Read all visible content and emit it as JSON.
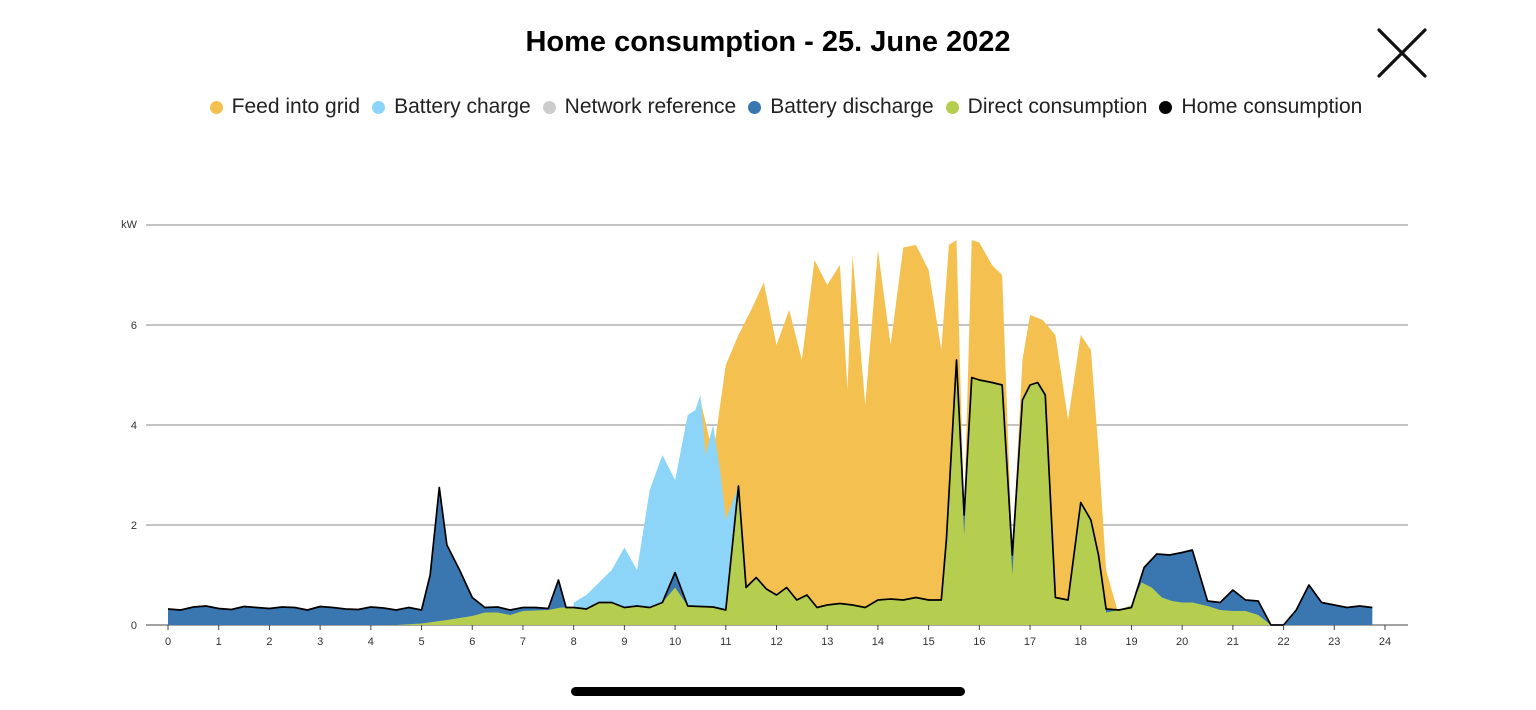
{
  "header": {
    "title": "Home consumption - 25. June 2022",
    "close_icon": "close-icon"
  },
  "colors": {
    "feed": "#F4C04F",
    "charge": "#8DD5F8",
    "network": "#CCCCCC",
    "discharge": "#3A77B1",
    "direct": "#B6CE4F",
    "home": "#000000"
  },
  "legend": [
    {
      "label": "Feed into grid",
      "color": "#F4C04F"
    },
    {
      "label": "Battery charge",
      "color": "#8DD5F8"
    },
    {
      "label": "Network reference",
      "color": "#CCCCCC"
    },
    {
      "label": "Battery discharge",
      "color": "#3A77B1"
    },
    {
      "label": "Direct consumption",
      "color": "#B6CE4F"
    },
    {
      "label": "Home consumption",
      "color": "#000000"
    }
  ],
  "chart_data": {
    "type": "area",
    "ylabel": "kW",
    "xlim": [
      0,
      24
    ],
    "ylim": [
      0,
      8
    ],
    "xticks": [
      "0",
      "1",
      "2",
      "3",
      "4",
      "5",
      "6",
      "7",
      "8",
      "9",
      "10",
      "11",
      "12",
      "13",
      "14",
      "15",
      "16",
      "17",
      "18",
      "19",
      "20",
      "21",
      "22",
      "23",
      "24"
    ],
    "yticks": [
      "0",
      "2",
      "4",
      "6"
    ],
    "grid": true,
    "legend_position": "top",
    "series": [
      {
        "name": "Home consumption",
        "x": [
          0,
          0.25,
          0.5,
          0.75,
          1,
          1.25,
          1.5,
          1.75,
          2,
          2.25,
          2.5,
          2.75,
          3,
          3.25,
          3.5,
          3.75,
          4,
          4.25,
          4.5,
          4.75,
          5,
          5.17,
          5.35,
          5.5,
          5.75,
          6,
          6.25,
          6.5,
          6.75,
          7,
          7.25,
          7.5,
          7.7,
          7.85,
          8,
          8.25,
          8.5,
          8.75,
          9,
          9.25,
          9.5,
          9.75,
          10,
          10.25,
          10.5,
          10.75,
          11,
          11.25,
          11.4,
          11.6,
          11.8,
          12,
          12.2,
          12.4,
          12.6,
          12.8,
          13,
          13.25,
          13.5,
          13.75,
          14,
          14.25,
          14.5,
          14.75,
          15,
          15.25,
          15.35,
          15.55,
          15.7,
          15.85,
          16,
          16.25,
          16.45,
          16.65,
          16.85,
          17,
          17.15,
          17.3,
          17.5,
          17.75,
          18,
          18.2,
          18.35,
          18.5,
          18.75,
          19,
          19.25,
          19.5,
          19.75,
          20,
          20.2,
          20.5,
          20.75,
          21,
          21.25,
          21.5,
          21.75,
          22,
          22.25,
          22.5,
          22.75,
          23,
          23.25,
          23.5,
          23.75
        ],
        "values": [
          0.32,
          0.3,
          0.36,
          0.38,
          0.33,
          0.31,
          0.37,
          0.35,
          0.33,
          0.36,
          0.35,
          0.3,
          0.37,
          0.35,
          0.32,
          0.31,
          0.36,
          0.34,
          0.3,
          0.35,
          0.3,
          1.0,
          2.75,
          1.6,
          1.1,
          0.55,
          0.35,
          0.36,
          0.3,
          0.35,
          0.35,
          0.33,
          0.9,
          0.35,
          0.35,
          0.32,
          0.45,
          0.45,
          0.35,
          0.38,
          0.35,
          0.45,
          1.05,
          0.38,
          0.37,
          0.36,
          0.3,
          2.78,
          0.75,
          0.95,
          0.72,
          0.6,
          0.75,
          0.5,
          0.6,
          0.35,
          0.4,
          0.43,
          0.4,
          0.35,
          0.5,
          0.52,
          0.5,
          0.55,
          0.5,
          0.5,
          1.7,
          5.3,
          2.2,
          4.95,
          4.9,
          4.85,
          4.8,
          1.4,
          4.5,
          4.8,
          4.85,
          4.6,
          0.55,
          0.5,
          2.45,
          2.1,
          1.4,
          0.32,
          0.3,
          0.35,
          1.15,
          1.42,
          1.4,
          1.45,
          1.5,
          0.48,
          0.45,
          0.7,
          0.5,
          0.48,
          0.0,
          0.0,
          0.3,
          0.8,
          0.45,
          0.4,
          0.35,
          0.38,
          0.35
        ]
      },
      {
        "name": "Direct consumption",
        "x": [
          0,
          4.5,
          5,
          5.5,
          6,
          6.25,
          6.5,
          6.75,
          7,
          7.5,
          7.75,
          8,
          8.25,
          8.5,
          8.75,
          9,
          9.25,
          9.5,
          9.75,
          10,
          10.25,
          10.5,
          10.75,
          11,
          11.25,
          11.4,
          11.6,
          11.8,
          12,
          12.2,
          12.4,
          12.6,
          12.8,
          13,
          13.25,
          13.5,
          13.75,
          14,
          14.25,
          14.5,
          14.75,
          15,
          15.25,
          15.35,
          15.55,
          15.7,
          15.85,
          16,
          16.25,
          16.45,
          16.65,
          16.85,
          17,
          17.15,
          17.3,
          17.5,
          17.75,
          18,
          18.2,
          18.35,
          18.5,
          18.75,
          19,
          19.2,
          19.4,
          19.6,
          19.8,
          20,
          20.2,
          20.5,
          20.75,
          21,
          21.25,
          21.5,
          21.75,
          22,
          22.25,
          24
        ],
        "values": [
          0,
          0,
          0.03,
          0.1,
          0.18,
          0.25,
          0.25,
          0.2,
          0.28,
          0.3,
          0.35,
          0.35,
          0.32,
          0.45,
          0.45,
          0.35,
          0.38,
          0.35,
          0.45,
          0.75,
          0.38,
          0.37,
          0.36,
          0.3,
          2.78,
          0.75,
          0.95,
          0.72,
          0.6,
          0.75,
          0.5,
          0.6,
          0.35,
          0.4,
          0.43,
          0.4,
          0.35,
          0.5,
          0.52,
          0.5,
          0.55,
          0.5,
          0.5,
          1.7,
          5.3,
          1.8,
          4.95,
          4.9,
          4.85,
          4.8,
          1.0,
          4.5,
          4.8,
          4.85,
          4.6,
          0.55,
          0.5,
          2.45,
          2.1,
          1.4,
          0.25,
          0.3,
          0.4,
          0.85,
          0.75,
          0.55,
          0.48,
          0.45,
          0.45,
          0.38,
          0.3,
          0.28,
          0.28,
          0.2,
          0.0,
          0.0,
          0,
          0
        ]
      },
      {
        "name": "Battery charge",
        "x": [
          8.0,
          8.25,
          8.5,
          8.75,
          9,
          9.25,
          9.5,
          9.75,
          10,
          10.25,
          10.4,
          10.5,
          10.6,
          10.75,
          10.9,
          11,
          11.25
        ],
        "values": [
          0.45,
          0.6,
          0.85,
          1.1,
          1.55,
          1.1,
          2.7,
          3.4,
          2.9,
          4.2,
          4.3,
          4.6,
          3.4,
          4.0,
          3.0,
          2.1,
          2.78
        ]
      },
      {
        "name": "Feed into grid",
        "x": [
          10.5,
          10.75,
          11,
          11.25,
          11.5,
          11.75,
          12,
          12.25,
          12.5,
          12.75,
          13,
          13.25,
          13.4,
          13.5,
          13.75,
          14,
          14.25,
          14.5,
          14.75,
          15,
          15.25,
          15.4,
          15.55,
          15.7,
          15.85,
          16,
          16.25,
          16.45,
          16.65,
          16.85,
          17,
          17.25,
          17.5,
          17.75,
          18,
          18.2,
          18.35,
          18.5,
          18.75,
          19
        ],
        "values": [
          4.5,
          3.4,
          5.2,
          5.8,
          6.3,
          6.85,
          5.6,
          6.3,
          5.3,
          7.3,
          6.8,
          7.2,
          4.7,
          7.4,
          4.4,
          7.5,
          5.6,
          7.55,
          7.6,
          7.1,
          5.5,
          7.6,
          7.7,
          2.2,
          7.7,
          7.65,
          7.2,
          7.0,
          1.4,
          5.3,
          6.2,
          6.1,
          5.8,
          4.1,
          5.8,
          5.5,
          3.5,
          1.1,
          0.2,
          0.35
        ]
      }
    ]
  }
}
